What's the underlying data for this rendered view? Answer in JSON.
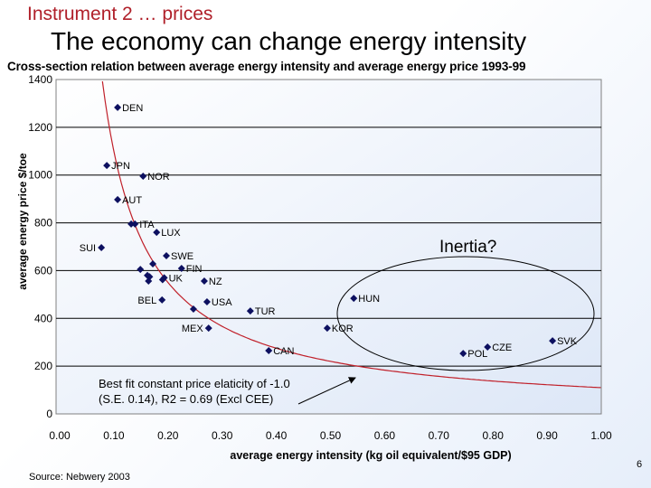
{
  "slide": {
    "subtitle": "Instrument 2 … prices",
    "title": "The economy can change energy intensity",
    "source": "Source: Nebwery 2003",
    "page_number": "6"
  },
  "chart_data": {
    "type": "scatter",
    "title": "Cross-section relation between average energy intensity and average energy price 1993-99",
    "xlabel": "average energy intensity (kg oil equivalent/$95 GDP)",
    "ylabel": "average energy price $/toe",
    "xlim": [
      0,
      1.0
    ],
    "ylim": [
      0,
      1400
    ],
    "x_ticks": [
      "0.00",
      "0.10",
      "0.20",
      "0.30",
      "0.40",
      "0.50",
      "0.60",
      "0.70",
      "0.80",
      "0.90",
      "1.00"
    ],
    "y_ticks": [
      "0",
      "200",
      "400",
      "600",
      "800",
      "1000",
      "1200",
      "1400"
    ],
    "grid": "horizontal",
    "marker_color": "#0d1060",
    "fit_color": "#c0202a",
    "points": [
      {
        "label": "DEN",
        "x": 0.107,
        "y": 1283
      },
      {
        "label": "JPN",
        "x": 0.087,
        "y": 1040
      },
      {
        "label": "NOR",
        "x": 0.154,
        "y": 995
      },
      {
        "label": "AUT",
        "x": 0.107,
        "y": 897
      },
      {
        "label": "ITA",
        "x": 0.139,
        "y": 795
      },
      {
        "label": "",
        "x": 0.132,
        "y": 795
      },
      {
        "label": "LUX",
        "x": 0.179,
        "y": 760
      },
      {
        "label": "SUI",
        "x": 0.077,
        "y": 696
      },
      {
        "label": "SWE",
        "x": 0.197,
        "y": 662
      },
      {
        "label": "",
        "x": 0.172,
        "y": 628
      },
      {
        "label": "",
        "x": 0.149,
        "y": 605
      },
      {
        "label": "FIN",
        "x": 0.225,
        "y": 609
      },
      {
        "label": "",
        "x": 0.162,
        "y": 580
      },
      {
        "label": "",
        "x": 0.166,
        "y": 574
      },
      {
        "label": "",
        "x": 0.164,
        "y": 556
      },
      {
        "label": "",
        "x": 0.19,
        "y": 562
      },
      {
        "label": "UK",
        "x": 0.193,
        "y": 570
      },
      {
        "label": "NZ",
        "x": 0.267,
        "y": 556
      },
      {
        "label": "BEL",
        "x": 0.189,
        "y": 477
      },
      {
        "label": "USA",
        "x": 0.272,
        "y": 469
      },
      {
        "label": "",
        "x": 0.247,
        "y": 439
      },
      {
        "label": "TUR",
        "x": 0.352,
        "y": 431
      },
      {
        "label": "MEX",
        "x": 0.275,
        "y": 359
      },
      {
        "label": "KOR",
        "x": 0.494,
        "y": 359
      },
      {
        "label": "HUN",
        "x": 0.543,
        "y": 484
      },
      {
        "label": "CAN",
        "x": 0.386,
        "y": 265
      },
      {
        "label": "POL",
        "x": 0.745,
        "y": 253
      },
      {
        "label": "CZE",
        "x": 0.79,
        "y": 280
      },
      {
        "label": "SVK",
        "x": 0.91,
        "y": 306
      }
    ],
    "annotations": {
      "inertia": "Inertia?",
      "fit_line1": "Best fit constant price elaticity of -1.0",
      "fit_line2": "(S.E. 0.14), R2 = 0.69 (Excl CEE)"
    }
  }
}
